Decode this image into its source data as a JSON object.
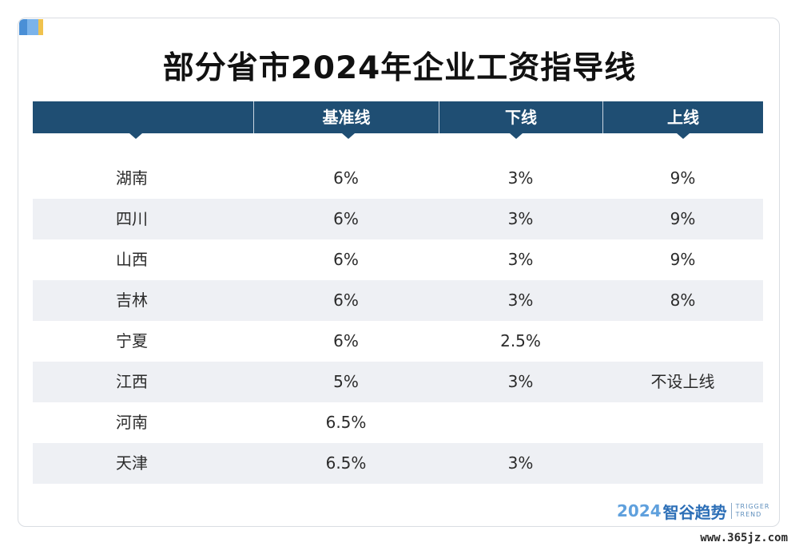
{
  "title": "部分省市2024年企业工资指导线",
  "chart_data": {
    "type": "table",
    "columns": [
      "",
      "基准线",
      "下线",
      "上线"
    ],
    "rows": [
      {
        "region": "湖南",
        "base": "6%",
        "lower": "3%",
        "upper": "9%"
      },
      {
        "region": "四川",
        "base": "6%",
        "lower": "3%",
        "upper": "9%"
      },
      {
        "region": "山西",
        "base": "6%",
        "lower": "3%",
        "upper": "9%"
      },
      {
        "region": "吉林",
        "base": "6%",
        "lower": "3%",
        "upper": "8%"
      },
      {
        "region": "宁夏",
        "base": "6%",
        "lower": "2.5%",
        "upper": ""
      },
      {
        "region": "江西",
        "base": "5%",
        "lower": "3%",
        "upper": "不设上线"
      },
      {
        "region": "河南",
        "base": "6.5%",
        "lower": "",
        "upper": ""
      },
      {
        "region": "天津",
        "base": "6.5%",
        "lower": "3%",
        "upper": ""
      }
    ]
  },
  "brand": {
    "year": "2024",
    "name": "智谷趋势",
    "en_line1": "TRIGGER",
    "en_line2": "TREND"
  },
  "watermark": "www.365jz.com",
  "colors": {
    "header_bg": "#1f4e73",
    "row_shade": "#eef0f4",
    "brand_blue": "#2d6fb7",
    "brand_light": "#5fa0dd"
  }
}
